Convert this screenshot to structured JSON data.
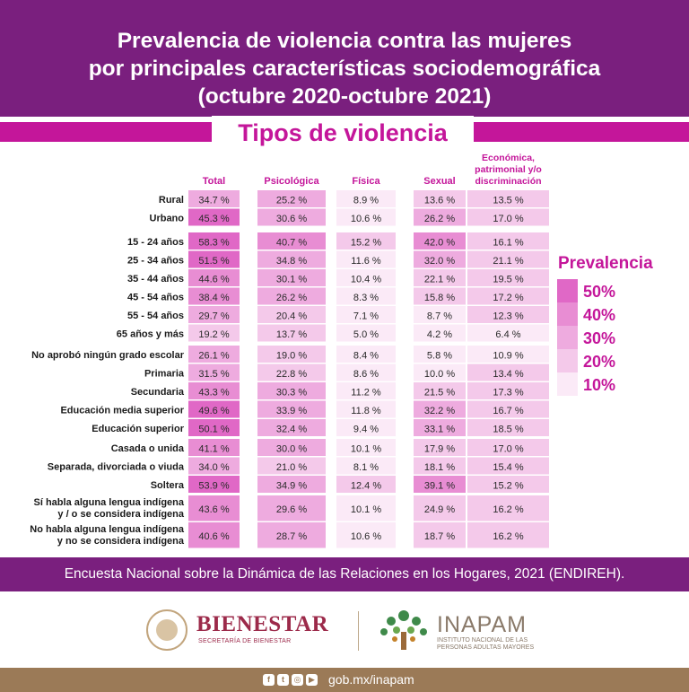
{
  "header": {
    "title_line1": "Prevalencia de violencia contra las mujeres",
    "title_line2": "por principales características sociodemográfica",
    "title_line3": "(octubre 2020-octubre 2021)",
    "subtitle": "Tipos de violencia"
  },
  "colors": {
    "header_bg": "#7a1f7e",
    "accent": "#c4169a",
    "footer_bg": "#7a1f7e",
    "bottom_bg": "#9b7a57",
    "scale": [
      "#fbeaf7",
      "#f4c9ea",
      "#eeabdf",
      "#e88dd3",
      "#e068c6"
    ]
  },
  "chart_data": {
    "type": "heatmap",
    "title": "Tipos de violencia",
    "columns": [
      "Total",
      "Psicológica",
      "Física",
      "Sexual",
      "Económica, patrimonial y/o discriminación"
    ],
    "groups": [
      {
        "rows": [
          {
            "label": "Rural",
            "values": [
              34.7,
              25.2,
              8.9,
              13.6,
              13.5
            ]
          },
          {
            "label": "Urbano",
            "values": [
              45.3,
              30.6,
              10.6,
              26.2,
              17.0
            ]
          }
        ]
      },
      {
        "rows": [
          {
            "label": "15 - 24 años",
            "values": [
              58.3,
              40.7,
              15.2,
              42.0,
              16.1
            ]
          },
          {
            "label": "25 - 34 años",
            "values": [
              51.5,
              34.8,
              11.6,
              32.0,
              21.1
            ]
          },
          {
            "label": "35 - 44 años",
            "values": [
              44.6,
              30.1,
              10.4,
              22.1,
              19.5
            ]
          },
          {
            "label": "45 - 54 años",
            "values": [
              38.4,
              26.2,
              8.3,
              15.8,
              17.2
            ]
          },
          {
            "label": "55 - 54 años",
            "values": [
              29.7,
              20.4,
              7.1,
              8.7,
              12.3
            ]
          },
          {
            "label": "65 años y más",
            "values": [
              19.2,
              13.7,
              5.0,
              4.2,
              6.4
            ]
          }
        ]
      },
      {
        "rows": [
          {
            "label": "No aprobó ningún grado escolar",
            "values": [
              26.1,
              19.0,
              8.4,
              5.8,
              10.9
            ]
          },
          {
            "label": "Primaria",
            "values": [
              31.5,
              22.8,
              8.6,
              10.0,
              13.4
            ]
          },
          {
            "label": "Secundaria",
            "values": [
              43.3,
              30.3,
              11.2,
              21.5,
              17.3
            ]
          },
          {
            "label": "Educación media superior",
            "values": [
              49.6,
              33.9,
              11.8,
              32.2,
              16.7
            ]
          },
          {
            "label": "Educación superior",
            "values": [
              50.1,
              32.4,
              9.4,
              33.1,
              18.5
            ]
          }
        ]
      },
      {
        "rows": [
          {
            "label": "Casada o unida",
            "values": [
              41.1,
              30.0,
              10.1,
              17.9,
              17.0
            ]
          },
          {
            "label": "Separada, divorciada o viuda",
            "values": [
              34.0,
              21.0,
              8.1,
              18.1,
              15.4
            ]
          },
          {
            "label": "Soltera",
            "values": [
              53.9,
              34.9,
              12.4,
              39.1,
              15.2
            ]
          }
        ]
      },
      {
        "rows": [
          {
            "label": [
              "Sí habla alguna lengua indígena",
              "y / o se considera indígena"
            ],
            "values": [
              43.6,
              29.6,
              10.1,
              24.9,
              16.2
            ]
          },
          {
            "label": [
              "No habla alguna lengua indígena",
              "y no se considera indígena"
            ],
            "values": [
              40.6,
              28.7,
              10.6,
              18.7,
              16.2
            ]
          }
        ]
      }
    ],
    "legend": {
      "title": "Prevalencia",
      "levels": [
        50,
        40,
        30,
        20,
        10
      ],
      "labels": [
        "50%",
        "40%",
        "30%",
        "20%",
        "10%"
      ]
    },
    "value_suffix": " %"
  },
  "footer": {
    "source": "Encuesta Nacional sobre la Dinámica de las Relaciones en los Hogares, 2021 (ENDIREH)."
  },
  "logos": {
    "bienestar_name": "BIENESTAR",
    "bienestar_sub": "SECRETARÍA DE BIENESTAR",
    "inapam_name": "INAPAM",
    "inapam_sub": "INSTITUTO NACIONAL DE LAS PERSONAS ADULTAS MAYORES"
  },
  "bottom": {
    "icons": [
      "facebook-icon",
      "twitter-icon",
      "instagram-icon",
      "youtube-icon"
    ],
    "url": "gob.mx/inapam"
  }
}
